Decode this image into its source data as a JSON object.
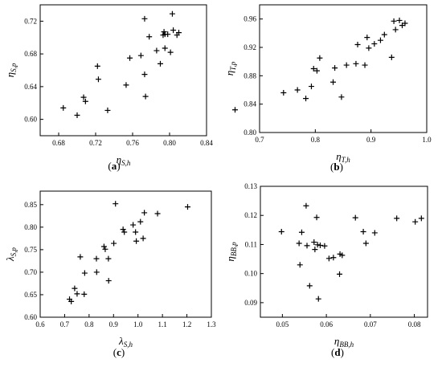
{
  "colors": {
    "axis": "#000000",
    "marker": "#000000",
    "background": "#ffffff"
  },
  "chart_data": [
    {
      "type": "scatter",
      "caption_letter": "a",
      "title": "",
      "xlabel": {
        "main": "η",
        "sub": "S,h"
      },
      "ylabel": {
        "main": "η",
        "sub": "S,p"
      },
      "xlim": [
        0.66,
        0.84
      ],
      "ylim": [
        0.58,
        0.74
      ],
      "xticks": [
        0.68,
        0.72,
        0.76,
        0.8,
        0.84
      ],
      "xtick_labels": [
        "0.68",
        "0.72",
        "0.76",
        "0.80",
        "0.84"
      ],
      "yticks": [
        0.6,
        0.64,
        0.68,
        0.72
      ],
      "ytick_labels": [
        "0.60",
        "0.64",
        "0.68",
        "0.72"
      ],
      "marker": "plus",
      "grid": false,
      "series": [
        {
          "x": [
            0.685,
            0.7,
            0.707,
            0.709,
            0.722,
            0.723,
            0.733,
            0.753,
            0.757,
            0.769,
            0.773,
            0.773,
            0.774,
            0.778,
            0.786,
            0.79,
            0.793,
            0.794,
            0.795,
            0.795,
            0.798,
            0.801,
            0.803,
            0.804,
            0.808,
            0.81
          ],
          "y": [
            0.614,
            0.605,
            0.627,
            0.622,
            0.665,
            0.649,
            0.611,
            0.642,
            0.675,
            0.678,
            0.723,
            0.655,
            0.628,
            0.701,
            0.684,
            0.668,
            0.703,
            0.707,
            0.687,
            0.704,
            0.704,
            0.682,
            0.729,
            0.709,
            0.703,
            0.706
          ]
        }
      ]
    },
    {
      "type": "scatter",
      "caption_letter": "b",
      "title": "",
      "xlabel": {
        "main": "η",
        "sub": "T,h"
      },
      "ylabel": {
        "main": "η",
        "sub": "T,p"
      },
      "xlim": [
        0.7,
        1.0
      ],
      "ylim": [
        0.8,
        0.98
      ],
      "xticks": [
        0.7,
        0.8,
        0.9,
        1.0
      ],
      "xtick_labels": [
        "0.7",
        "0.8",
        "0.9",
        "1.0"
      ],
      "yticks": [
        0.8,
        0.84,
        0.88,
        0.92,
        0.96
      ],
      "ytick_labels": [
        "0.80",
        "0.84",
        "0.88",
        "0.92",
        "0.96"
      ],
      "marker": "plus",
      "grid": false,
      "series": [
        {
          "x": [
            0.656,
            0.743,
            0.768,
            0.783,
            0.793,
            0.797,
            0.803,
            0.808,
            0.832,
            0.835,
            0.847,
            0.856,
            0.873,
            0.876,
            0.889,
            0.893,
            0.896,
            0.906,
            0.917,
            0.924,
            0.937,
            0.941,
            0.944,
            0.951,
            0.956,
            0.961
          ],
          "y": [
            0.832,
            0.856,
            0.86,
            0.848,
            0.865,
            0.89,
            0.887,
            0.905,
            0.871,
            0.891,
            0.85,
            0.895,
            0.897,
            0.924,
            0.895,
            0.934,
            0.919,
            0.925,
            0.93,
            0.938,
            0.906,
            0.957,
            0.945,
            0.958,
            0.951,
            0.954
          ]
        }
      ]
    },
    {
      "type": "scatter",
      "caption_letter": "c",
      "title": "",
      "xlabel": {
        "main": "λ",
        "sub": "S,h"
      },
      "ylabel": {
        "main": "λ",
        "sub": "S,p"
      },
      "xlim": [
        0.6,
        1.3
      ],
      "ylim": [
        0.6,
        0.88
      ],
      "xticks": [
        0.6,
        0.7,
        0.8,
        0.9,
        1.0,
        1.1,
        1.2,
        1.3
      ],
      "xtick_labels": [
        "0.6",
        "0.7",
        "0.8",
        "0.9",
        "1.0",
        "1.1",
        "1.2",
        "1.3"
      ],
      "yticks": [
        0.6,
        0.65,
        0.7,
        0.75,
        0.8,
        0.85
      ],
      "ytick_labels": [
        "0.60",
        "0.65",
        "0.70",
        "0.75",
        "0.80",
        "0.85"
      ],
      "marker": "plus",
      "grid": false,
      "series": [
        {
          "x": [
            0.72,
            0.727,
            0.741,
            0.751,
            0.764,
            0.78,
            0.782,
            0.83,
            0.831,
            0.861,
            0.866,
            0.879,
            0.88,
            0.901,
            0.908,
            0.939,
            0.944,
            0.98,
            0.99,
            0.993,
            1.01,
            1.021,
            1.026,
            1.08,
            1.203
          ],
          "y": [
            0.64,
            0.635,
            0.664,
            0.652,
            0.734,
            0.651,
            0.698,
            0.73,
            0.7,
            0.757,
            0.751,
            0.73,
            0.681,
            0.764,
            0.852,
            0.795,
            0.789,
            0.805,
            0.789,
            0.769,
            0.812,
            0.775,
            0.832,
            0.83,
            0.845
          ]
        }
      ]
    },
    {
      "type": "scatter",
      "caption_letter": "d",
      "title": "",
      "xlabel": {
        "main": "η",
        "sub": "BB,h"
      },
      "ylabel": {
        "main": "η",
        "sub": "BB,p"
      },
      "xlim": [
        0.045,
        0.083
      ],
      "ylim": [
        0.085,
        0.13
      ],
      "xticks": [
        0.05,
        0.06,
        0.07,
        0.08
      ],
      "xtick_labels": [
        "0.05",
        "0.06",
        "0.07",
        "0.08"
      ],
      "yticks": [
        0.09,
        0.1,
        0.11,
        0.12,
        0.13
      ],
      "ytick_labels": [
        "0.09",
        "0.10",
        "0.11",
        "0.12",
        "0.13"
      ],
      "marker": "plus",
      "grid": false,
      "series": [
        {
          "x": [
            0.0498,
            0.0538,
            0.054,
            0.0544,
            0.0554,
            0.0556,
            0.0562,
            0.0572,
            0.0574,
            0.0578,
            0.058,
            0.0582,
            0.0586,
            0.0596,
            0.0606,
            0.0616,
            0.063,
            0.0631,
            0.0636,
            0.0666,
            0.0684,
            0.069,
            0.071,
            0.076,
            0.0802,
            0.0816
          ],
          "y": [
            0.1144,
            0.1104,
            0.103,
            0.1142,
            0.1233,
            0.1096,
            0.0958,
            0.1108,
            0.1083,
            0.1193,
            0.1099,
            0.0913,
            0.1097,
            0.1095,
            0.1052,
            0.1055,
            0.0998,
            0.1067,
            0.1063,
            0.1192,
            0.1144,
            0.1104,
            0.114,
            0.119,
            0.1178,
            0.119
          ]
        }
      ]
    }
  ]
}
